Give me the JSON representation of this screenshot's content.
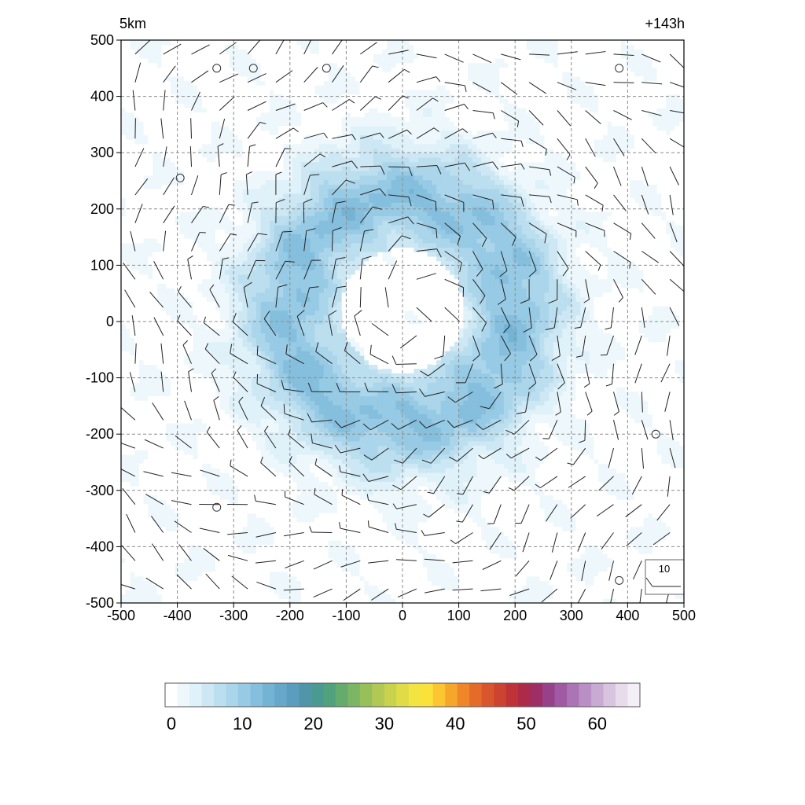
{
  "chart_data": {
    "type": "heatmap",
    "title_left": "5km",
    "title_right": "+143h",
    "xlim": [
      -500,
      500
    ],
    "ylim": [
      -500,
      500
    ],
    "grid": true,
    "x_ticks": [
      "-500",
      "-400",
      "-300",
      "-200",
      "-100",
      "0",
      "100",
      "200",
      "300",
      "400",
      "500"
    ],
    "y_ticks": [
      "500",
      "400",
      "300",
      "200",
      "100",
      "0",
      "-100",
      "-200",
      "-300",
      "-400",
      "-500"
    ],
    "field": {
      "description_of_structure": "annular ring of values centered near (0,0)",
      "ring_center": [
        0,
        20
      ],
      "ring_peak_radius_km": 200,
      "ring_peak_value": 12,
      "inner_eye_radius_km": 110,
      "outer_background_value": 1
    },
    "wind_barbs": {
      "spacing_km": 50,
      "rotation": "cyclonic",
      "reference_label": "10",
      "reference_speed": 10,
      "calm_points": [
        [
          -330,
          450
        ],
        [
          -265,
          450
        ],
        [
          -135,
          450
        ],
        [
          385,
          450
        ],
        [
          -395,
          255
        ],
        [
          450,
          -200
        ],
        [
          -330,
          -330
        ],
        [
          385,
          -460
        ]
      ]
    },
    "colorbar": {
      "min": 0,
      "max": 66,
      "tick_labels": [
        "0",
        "10",
        "20",
        "30",
        "40",
        "50",
        "60"
      ],
      "tick_values": [
        0,
        10,
        20,
        30,
        40,
        50,
        60
      ],
      "colors": [
        "#ffffff",
        "#eef8fc",
        "#dff1f9",
        "#cde8f4",
        "#bcdfef",
        "#aad5ea",
        "#97cae4",
        "#85bfdd",
        "#74b3d4",
        "#66a7ca",
        "#5b9dbf",
        "#5196a8",
        "#4a9a92",
        "#50a17c",
        "#64ab6d",
        "#7cb563",
        "#97bf5a",
        "#b1c854",
        "#c9d24d",
        "#dfdc47",
        "#f2e542",
        "#fbe23b",
        "#fbc631",
        "#f6a62a",
        "#ef8628",
        "#e46b2a",
        "#d9552d",
        "#cd4332",
        "#bf3338",
        "#ad2a4a",
        "#9d2f66",
        "#97418a",
        "#9f5aa3",
        "#ab74b5",
        "#b98fc5",
        "#c8aad2",
        "#d8c4df",
        "#e8dcec",
        "#f4eef6"
      ]
    }
  }
}
